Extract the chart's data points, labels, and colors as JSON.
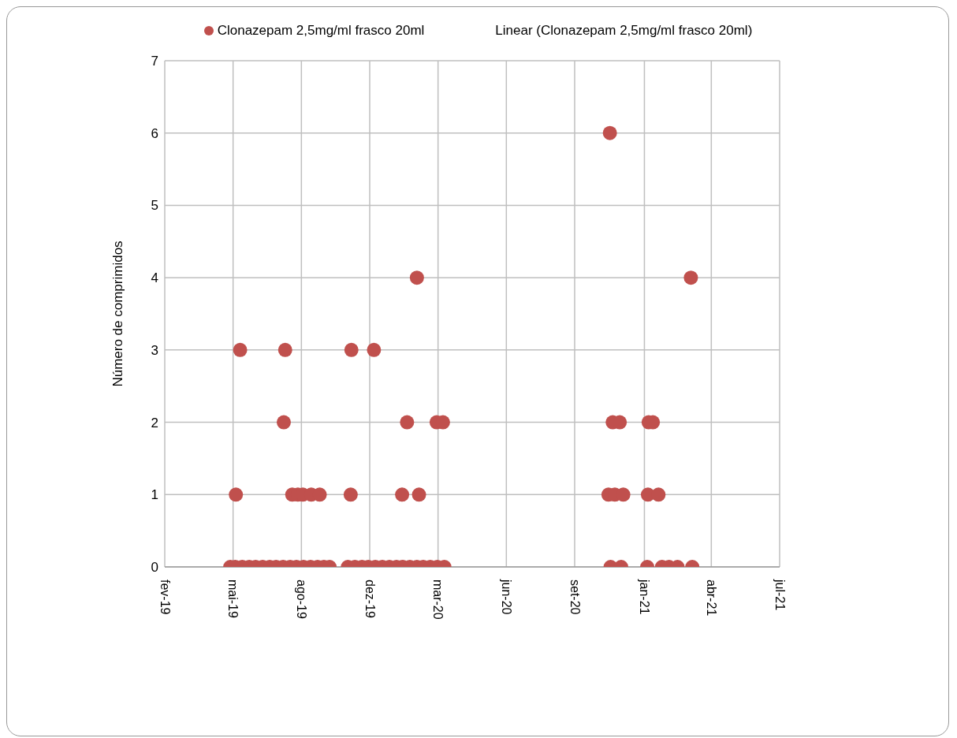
{
  "chart_data": {
    "type": "scatter",
    "ylabel": "Número de comprimidos",
    "legend": "top",
    "grid": true,
    "marker": "circle",
    "annotations": [
      "Linear (Clonazepam 2,5mg/ml frasco 20ml)"
    ],
    "xlim": [
      "2019-02-20",
      "2021-07-12"
    ],
    "xticks": [
      {
        "value": "2019-02-20",
        "label": "fev-19"
      },
      {
        "value": "2019-05-28",
        "label": "mai-19"
      },
      {
        "value": "2019-09-02",
        "label": "ago-19"
      },
      {
        "value": "2019-12-08",
        "label": "dez-19"
      },
      {
        "value": "2020-03-14",
        "label": "mar-20"
      },
      {
        "value": "2020-06-19",
        "label": "jun-20"
      },
      {
        "value": "2020-09-24",
        "label": "set-20"
      },
      {
        "value": "2021-01-01",
        "label": "jan-21"
      },
      {
        "value": "2021-04-06",
        "label": "abr-21"
      },
      {
        "value": "2021-07-12",
        "label": "jul-21"
      }
    ],
    "ylim": [
      0,
      7
    ],
    "yticks": [
      0,
      1,
      2,
      3,
      4,
      5,
      6,
      7
    ],
    "series": [
      {
        "name": "Clonazepam 2,5mg/ml frasco 20ml",
        "color": "#c0504d",
        "x": [
          "2019-05-24",
          "2019-05-31",
          "2019-06-10",
          "2019-06-20",
          "2019-06-29",
          "2019-07-09",
          "2019-07-19",
          "2019-07-28",
          "2019-08-07",
          "2019-08-17",
          "2019-08-26",
          "2019-09-05",
          "2019-09-15",
          "2019-09-25",
          "2019-10-04",
          "2019-10-12",
          "2019-11-07",
          "2019-11-17",
          "2019-11-27",
          "2019-12-06",
          "2019-12-16",
          "2019-12-26",
          "2020-01-05",
          "2020-01-15",
          "2020-01-24",
          "2020-02-03",
          "2020-02-13",
          "2020-02-22",
          "2020-03-03",
          "2020-03-13",
          "2020-03-23",
          "2020-11-14",
          "2020-11-29",
          "2021-01-05",
          "2021-01-26",
          "2021-02-05",
          "2021-02-17",
          "2021-03-10",
          "2019-06-01",
          "2019-08-20",
          "2019-08-28",
          "2019-09-04",
          "2019-09-16",
          "2019-09-28",
          "2019-11-11",
          "2020-01-23",
          "2020-02-16",
          "2020-11-11",
          "2020-11-20",
          "2020-12-02",
          "2021-01-06",
          "2021-01-21",
          "2019-08-08",
          "2020-01-30",
          "2020-03-12",
          "2020-03-21",
          "2020-11-17",
          "2020-11-27",
          "2021-01-07",
          "2021-01-13",
          "2019-06-07",
          "2019-08-10",
          "2019-11-12",
          "2019-12-14",
          "2020-02-13",
          "2021-03-08",
          "2020-11-13"
        ],
        "values": [
          0,
          0,
          0,
          0,
          0,
          0,
          0,
          0,
          0,
          0,
          0,
          0,
          0,
          0,
          0,
          0,
          0,
          0,
          0,
          0,
          0,
          0,
          0,
          0,
          0,
          0,
          0,
          0,
          0,
          0,
          0,
          0,
          0,
          0,
          0,
          0,
          0,
          0,
          1,
          1,
          1,
          1,
          1,
          1,
          1,
          1,
          1,
          1,
          1,
          1,
          1,
          1,
          2,
          2,
          2,
          2,
          2,
          2,
          2,
          2,
          3,
          3,
          3,
          3,
          4,
          4,
          6
        ]
      }
    ]
  }
}
